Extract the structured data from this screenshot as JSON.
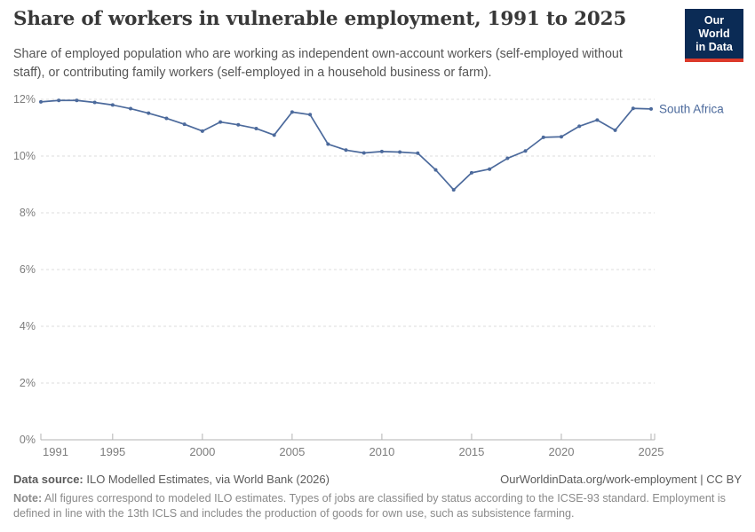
{
  "header": {
    "title": "Share of workers in vulnerable employment, 1991 to 2025",
    "subtitle": "Share of employed population who are working as independent own-account workers (self-employed without staff), or contributing family workers (self-employed in a household business or farm).",
    "logo": {
      "line1": "Our World",
      "line2": "in Data",
      "bg": "#0b2b55",
      "stripe": "#dc3a2b"
    }
  },
  "chart_data": {
    "type": "line",
    "title": "Share of workers in vulnerable employment, 1991 to 2025",
    "x": [
      1991,
      1992,
      1993,
      1994,
      1995,
      1996,
      1997,
      1998,
      1999,
      2000,
      2001,
      2002,
      2003,
      2004,
      2005,
      2006,
      2007,
      2008,
      2009,
      2010,
      2011,
      2012,
      2013,
      2014,
      2015,
      2016,
      2017,
      2018,
      2019,
      2020,
      2021,
      2022,
      2023,
      2024,
      2025
    ],
    "series": [
      {
        "name": "South Africa",
        "color": "#4C6A9C",
        "values": [
          11.91,
          11.96,
          11.96,
          11.89,
          11.8,
          11.67,
          11.51,
          11.33,
          11.12,
          10.88,
          11.2,
          11.1,
          10.97,
          10.74,
          11.55,
          11.46,
          10.42,
          10.21,
          10.11,
          10.16,
          10.14,
          10.1,
          9.51,
          8.81,
          9.41,
          9.54,
          9.92,
          10.18,
          10.66,
          10.68,
          11.05,
          11.27,
          10.91,
          11.68,
          11.66
        ]
      }
    ],
    "xlabel": "",
    "ylabel": "",
    "ylim": [
      0,
      12
    ],
    "yticks": {
      "values": [
        0,
        2,
        4,
        6,
        8,
        10,
        12
      ],
      "labels": [
        "0%",
        "2%",
        "4%",
        "6%",
        "8%",
        "10%",
        "12%"
      ]
    },
    "xticks": {
      "values": [
        1991,
        1995,
        2000,
        2005,
        2010,
        2015,
        2020,
        2025
      ],
      "labels": [
        "1991",
        "1995",
        "2000",
        "2005",
        "2010",
        "2015",
        "2020",
        "2025"
      ]
    },
    "grid": "horizontal-dashed",
    "legend": "end-of-line-label",
    "entity_label": "South Africa",
    "colors": {
      "line": "#4C6A9C",
      "grid": "#dcdcdc",
      "axis": "#b3b3b3",
      "tick_label": "#7d7d7d"
    }
  },
  "footer": {
    "source_label": "Data source:",
    "source_value": " ILO Modelled Estimates, via World Bank (2026)",
    "link": "OurWorldinData.org/work-employment | CC BY",
    "note_label": "Note:",
    "note_value": " All figures correspond to modeled ILO estimates. Types of jobs are classified by status according to the ICSE-93 standard. Employment is defined in line with the 13th ICLS and includes the production of goods for own use, such as subsistence farming."
  }
}
